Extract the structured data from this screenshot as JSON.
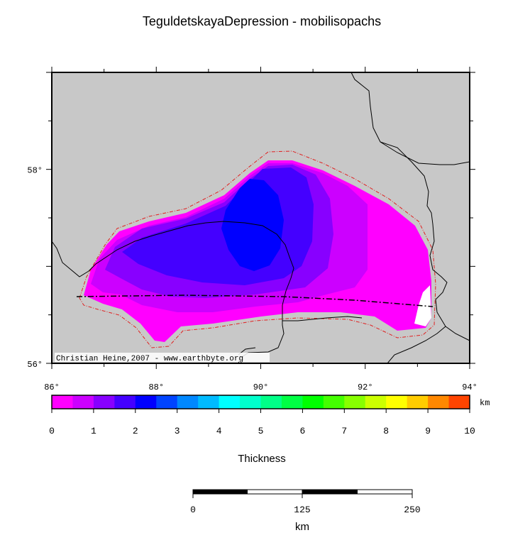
{
  "title": "TeguldetskayaDepression - mobilisopachs",
  "map": {
    "lon_range": [
      86,
      94
    ],
    "lat_range": [
      56,
      59
    ],
    "lon_ticks": [
      {
        "value": 86,
        "label": "86°"
      },
      {
        "value": 88,
        "label": "88°"
      },
      {
        "value": 90,
        "label": "90°"
      },
      {
        "value": 92,
        "label": "92°"
      },
      {
        "value": 94,
        "label": "94°"
      }
    ],
    "lat_ticks": [
      {
        "value": 56,
        "label": "56°"
      },
      {
        "value": 58,
        "label": "58°"
      }
    ],
    "background_color": "#c8c8c8",
    "outline_color": "#e02020",
    "credit": "Christian Heine,2007 - www.earthbyte.org"
  },
  "colorbar": {
    "colors": [
      "#ff00ff",
      "#cc00ff",
      "#8800ff",
      "#4400ff",
      "#0000ff",
      "#0044ff",
      "#0088ff",
      "#00bbff",
      "#00ffff",
      "#00ffcc",
      "#00ff88",
      "#00ff44",
      "#00ff00",
      "#44ff00",
      "#88ff00",
      "#ccff00",
      "#ffff00",
      "#ffcc00",
      "#ff8800",
      "#ff4400"
    ],
    "tick_labels": [
      "0",
      "1",
      "2",
      "3",
      "4",
      "5",
      "6",
      "7",
      "8",
      "9",
      "10"
    ],
    "unit": "km",
    "label": "Thickness"
  },
  "scalebar": {
    "tick_labels": [
      "0",
      "125",
      "250"
    ],
    "unit": "km"
  }
}
